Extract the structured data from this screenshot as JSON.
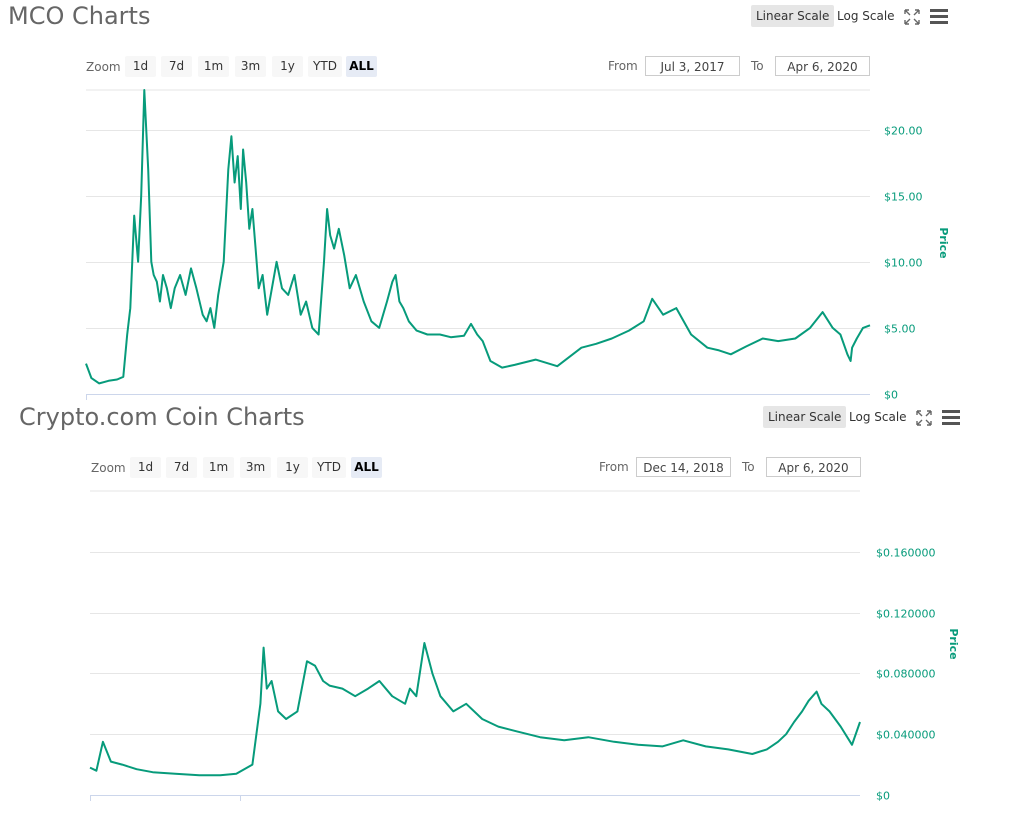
{
  "charts": [
    {
      "title": "MCO Charts",
      "scale_linear": "Linear Scale",
      "scale_log": "Log Scale",
      "zoom_label": "Zoom",
      "zoom_buttons": [
        "1d",
        "7d",
        "1m",
        "3m",
        "1y",
        "YTD",
        "ALL"
      ],
      "zoom_selected": "ALL",
      "from_label": "From",
      "from_value": "Jul 3, 2017",
      "to_label": "To",
      "to_value": "Apr 6, 2020"
    },
    {
      "title": "Crypto.com Coin Charts",
      "scale_linear": "Linear Scale",
      "scale_log": "Log Scale",
      "zoom_label": "Zoom",
      "zoom_buttons": [
        "1d",
        "7d",
        "1m",
        "3m",
        "1y",
        "YTD",
        "ALL"
      ],
      "zoom_selected": "ALL",
      "from_label": "From",
      "from_value": "Dec 14, 2018",
      "to_label": "To",
      "to_value": "Apr 6, 2020"
    }
  ],
  "colors": {
    "line": "#079b7b",
    "grid": "#e6e6e6",
    "axis_label": "#079b7b"
  },
  "icons": {
    "fullscreen": "fullscreen-icon",
    "menu": "hamburger-menu-icon"
  },
  "chart_data": [
    {
      "type": "line",
      "title": "MCO Charts",
      "xlabel": "",
      "ylabel": "Price",
      "x_range": [
        "2017-07-03",
        "2020-04-06"
      ],
      "ylim": [
        0,
        23
      ],
      "y_ticks": [
        0,
        5,
        10,
        15,
        20
      ],
      "y_tick_labels": [
        "$0",
        "$5.00",
        "$10.00",
        "$15.00",
        "$20.00"
      ],
      "grid": true,
      "series": [
        {
          "x": [
            "2017-07-03",
            "2017-07-10",
            "2017-07-20",
            "2017-08-01",
            "2017-08-12",
            "2017-08-20",
            "2017-08-25",
            "2017-08-29",
            "2017-09-03",
            "2017-09-08",
            "2017-09-12",
            "2017-09-16",
            "2017-09-21",
            "2017-09-25",
            "2017-09-28",
            "2017-10-02",
            "2017-10-06",
            "2017-10-10",
            "2017-10-15",
            "2017-10-20",
            "2017-10-25",
            "2017-11-01",
            "2017-11-08",
            "2017-11-15",
            "2017-11-22",
            "2017-11-30",
            "2017-12-05",
            "2017-12-10",
            "2017-12-15",
            "2017-12-20",
            "2017-12-27",
            "2018-01-02",
            "2018-01-06",
            "2018-01-10",
            "2018-01-14",
            "2018-01-18",
            "2018-01-21",
            "2018-01-25",
            "2018-01-29",
            "2018-02-02",
            "2018-02-06",
            "2018-02-10",
            "2018-02-15",
            "2018-02-21",
            "2018-02-27",
            "2018-03-05",
            "2018-03-12",
            "2018-03-20",
            "2018-03-28",
            "2018-04-05",
            "2018-04-12",
            "2018-04-20",
            "2018-04-28",
            "2018-05-05",
            "2018-05-09",
            "2018-05-13",
            "2018-05-18",
            "2018-05-24",
            "2018-05-31",
            "2018-06-07",
            "2018-06-15",
            "2018-06-25",
            "2018-07-05",
            "2018-07-15",
            "2018-07-25",
            "2018-08-01",
            "2018-08-05",
            "2018-08-10",
            "2018-08-15",
            "2018-08-22",
            "2018-09-01",
            "2018-09-15",
            "2018-10-01",
            "2018-10-15",
            "2018-11-01",
            "2018-11-10",
            "2018-11-18",
            "2018-11-25",
            "2018-12-05",
            "2018-12-20",
            "2019-01-05",
            "2019-02-01",
            "2019-03-01",
            "2019-04-01",
            "2019-04-20",
            "2019-05-10",
            "2019-06-01",
            "2019-06-20",
            "2019-07-01",
            "2019-07-15",
            "2019-08-01",
            "2019-08-20",
            "2019-09-10",
            "2019-09-25",
            "2019-10-10",
            "2019-10-30",
            "2019-11-20",
            "2019-12-10",
            "2020-01-01",
            "2020-01-20",
            "2020-02-05",
            "2020-02-18",
            "2020-02-28",
            "2020-03-08",
            "2020-03-12",
            "2020-03-14",
            "2020-03-20",
            "2020-03-28",
            "2020-04-06"
          ],
          "values": [
            2.3,
            1.2,
            0.8,
            1.0,
            1.1,
            1.3,
            4.5,
            6.5,
            13.5,
            10.0,
            15.0,
            23.0,
            17.0,
            10.0,
            9.0,
            8.5,
            7.0,
            9.0,
            8.0,
            6.5,
            8.0,
            9.0,
            7.5,
            9.5,
            8.0,
            6.0,
            5.5,
            6.5,
            5.0,
            7.5,
            10.0,
            17.0,
            19.5,
            16.0,
            18.0,
            14.0,
            18.5,
            16.0,
            12.5,
            14.0,
            11.0,
            8.0,
            9.0,
            6.0,
            8.0,
            10.0,
            8.0,
            7.5,
            9.0,
            6.0,
            7.0,
            5.0,
            4.5,
            10.0,
            14.0,
            12.0,
            11.0,
            12.5,
            10.5,
            8.0,
            9.0,
            7.0,
            5.5,
            5.0,
            7.0,
            8.5,
            9.0,
            7.0,
            6.5,
            5.5,
            4.8,
            4.5,
            4.5,
            4.3,
            4.4,
            5.3,
            4.5,
            4.0,
            2.5,
            2.0,
            2.2,
            2.6,
            2.1,
            3.5,
            3.8,
            4.2,
            4.8,
            5.5,
            7.2,
            6.0,
            6.5,
            4.5,
            3.5,
            3.3,
            3.0,
            3.6,
            4.2,
            4.0,
            4.2,
            5.0,
            6.2,
            5.0,
            4.5,
            3.0,
            2.5,
            3.5,
            4.2,
            5.0,
            5.2
          ]
        }
      ]
    },
    {
      "type": "line",
      "title": "Crypto.com Coin Charts",
      "xlabel": "",
      "ylabel": "Price",
      "x_range": [
        "2018-12-14",
        "2020-04-06"
      ],
      "ylim": [
        0,
        0.2
      ],
      "y_ticks": [
        0,
        0.04,
        0.08,
        0.12,
        0.16
      ],
      "y_tick_labels": [
        "$0",
        "$0.040000",
        "$0.080000",
        "$0.120000",
        "$0.160000"
      ],
      "grid": true,
      "series": [
        {
          "x": [
            "2018-12-14",
            "2018-12-18",
            "2018-12-22",
            "2018-12-27",
            "2019-01-03",
            "2019-01-12",
            "2019-01-22",
            "2019-02-05",
            "2019-02-20",
            "2019-03-05",
            "2019-03-15",
            "2019-03-25",
            "2019-03-30",
            "2019-04-01",
            "2019-04-03",
            "2019-04-06",
            "2019-04-10",
            "2019-04-15",
            "2019-04-22",
            "2019-04-28",
            "2019-05-03",
            "2019-05-08",
            "2019-05-12",
            "2019-05-20",
            "2019-05-28",
            "2019-06-05",
            "2019-06-12",
            "2019-06-20",
            "2019-06-28",
            "2019-07-01",
            "2019-07-05",
            "2019-07-10",
            "2019-07-15",
            "2019-07-20",
            "2019-07-28",
            "2019-08-05",
            "2019-08-15",
            "2019-08-25",
            "2019-09-05",
            "2019-09-20",
            "2019-10-05",
            "2019-10-20",
            "2019-11-05",
            "2019-11-20",
            "2019-12-05",
            "2019-12-18",
            "2020-01-01",
            "2020-01-15",
            "2020-01-30",
            "2020-02-08",
            "2020-02-15",
            "2020-02-20",
            "2020-02-25",
            "2020-03-01",
            "2020-03-05",
            "2020-03-10",
            "2020-03-13",
            "2020-03-18",
            "2020-03-25",
            "2020-04-01",
            "2020-04-06"
          ],
          "values": [
            0.018,
            0.016,
            0.035,
            0.022,
            0.02,
            0.017,
            0.015,
            0.014,
            0.013,
            0.013,
            0.014,
            0.02,
            0.06,
            0.097,
            0.07,
            0.075,
            0.055,
            0.05,
            0.055,
            0.088,
            0.085,
            0.075,
            0.072,
            0.07,
            0.065,
            0.07,
            0.075,
            0.065,
            0.06,
            0.07,
            0.065,
            0.1,
            0.08,
            0.065,
            0.055,
            0.06,
            0.05,
            0.045,
            0.042,
            0.038,
            0.036,
            0.038,
            0.035,
            0.033,
            0.032,
            0.036,
            0.032,
            0.03,
            0.027,
            0.03,
            0.035,
            0.04,
            0.048,
            0.055,
            0.062,
            0.068,
            0.06,
            0.055,
            0.045,
            0.033,
            0.048
          ]
        }
      ]
    }
  ]
}
